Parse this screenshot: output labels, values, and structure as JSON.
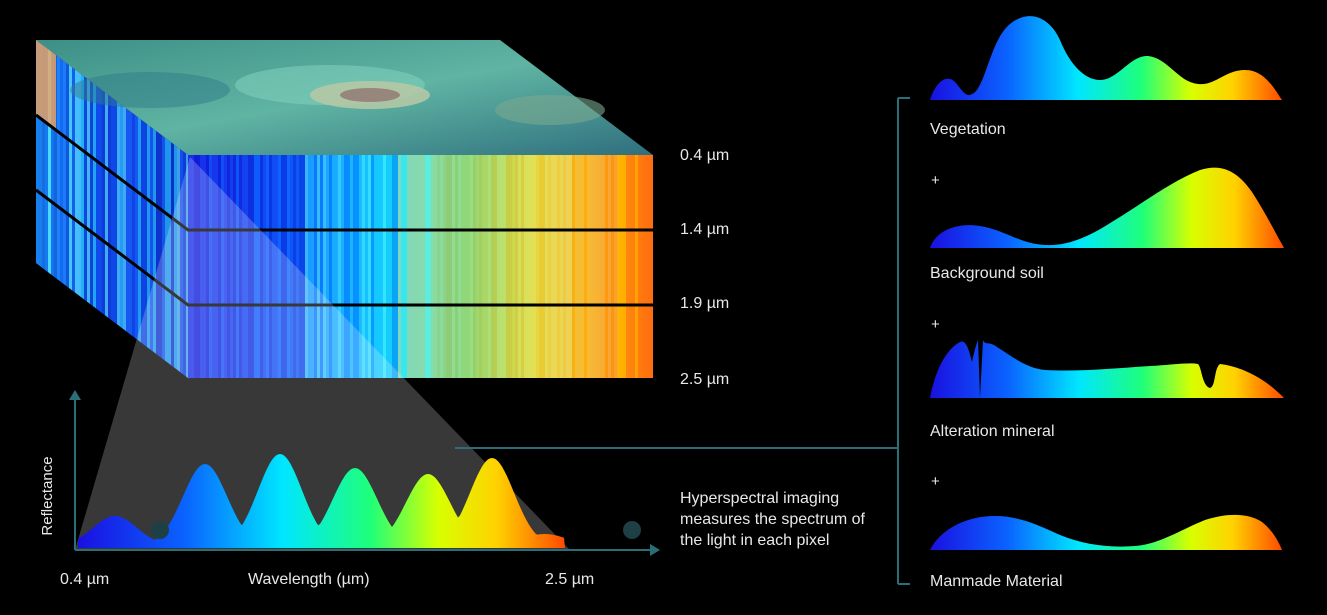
{
  "layer_labels": [
    "0.4 µm",
    "1.4 µm",
    "1.9 µm",
    "2.5 µm"
  ],
  "chart": {
    "ylabel": "Reflectance",
    "xlabel": "Wavelength (µm)",
    "xmin_label": "0.4 µm",
    "xmax_label": "2.5 µm"
  },
  "caption": "Hyperspectral imaging measures the spectrum of the light in each pixel",
  "materials": [
    {
      "name": "Vegetation"
    },
    {
      "name": "Background soil"
    },
    {
      "name": "Alteration mineral"
    },
    {
      "name": "Manmade Material"
    }
  ],
  "plus_sign": "+",
  "colors": {
    "background": "#000000",
    "line": "#2a6f78",
    "spectrum": [
      "#1a1aff",
      "#0a6cff",
      "#00e5ff",
      "#22ff88",
      "#c8ff00",
      "#ffd400",
      "#ff5a00"
    ]
  }
}
